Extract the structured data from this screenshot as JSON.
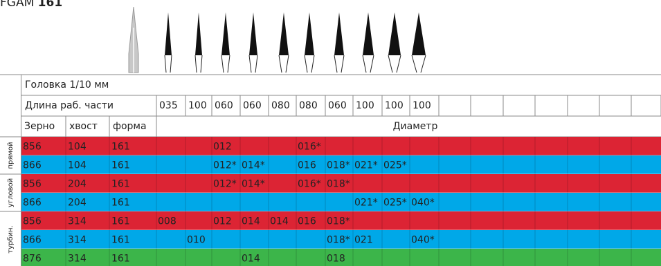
{
  "header": {
    "name": "FGAM",
    "number": "161"
  },
  "table": {
    "head_label": "Головка 1/10 мм",
    "length_label": "Длина раб. части",
    "lengths": [
      "035",
      "100",
      "060",
      "060",
      "080",
      "080",
      "060",
      "100",
      "100",
      "100"
    ],
    "columns": [
      "Зерно",
      "хвост",
      "форма"
    ],
    "diameter_label": "Диаметр",
    "groups": [
      {
        "label": "прямой",
        "rows": [
          {
            "grit": "856",
            "shank": "104",
            "shape": "161",
            "color": "#dc2434",
            "diameters": [
              null,
              null,
              "012",
              null,
              null,
              "016*",
              null,
              null,
              null,
              null
            ]
          },
          {
            "grit": "866",
            "shank": "104",
            "shape": "161",
            "color": "#00a8e8",
            "diameters": [
              null,
              null,
              "012*",
              "014*",
              null,
              "016",
              "018*",
              "021*",
              "025*",
              null
            ]
          }
        ]
      },
      {
        "label": "угловой",
        "rows": [
          {
            "grit": "856",
            "shank": "204",
            "shape": "161",
            "color": "#dc2434",
            "diameters": [
              null,
              null,
              "012*",
              "014*",
              null,
              "016*",
              "018*",
              null,
              null,
              null
            ]
          },
          {
            "grit": "866",
            "shank": "204",
            "shape": "161",
            "color": "#00a8e8",
            "diameters": [
              null,
              null,
              null,
              null,
              null,
              null,
              null,
              "021*",
              "025*",
              "040*"
            ]
          }
        ]
      },
      {
        "label": "турбин.",
        "rows": [
          {
            "grit": "856",
            "shank": "314",
            "shape": "161",
            "color": "#dc2434",
            "diameters": [
              "008",
              null,
              "012",
              "014",
              "014",
              "016",
              "018*",
              null,
              null,
              null
            ]
          },
          {
            "grit": "866",
            "shank": "314",
            "shape": "161",
            "color": "#00a8e8",
            "diameters": [
              null,
              "010",
              null,
              null,
              null,
              null,
              "018*",
              "021",
              null,
              "040*"
            ]
          },
          {
            "grit": "876",
            "shank": "314",
            "shape": "161",
            "color": "#3cb54a",
            "diameters": [
              null,
              null,
              null,
              "014",
              null,
              null,
              "018",
              null,
              null,
              null
            ]
          }
        ]
      }
    ]
  }
}
